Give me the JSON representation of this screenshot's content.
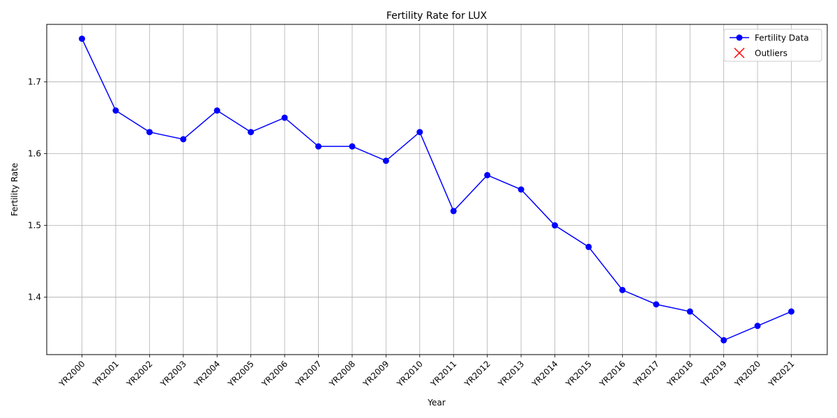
{
  "colors": {
    "series": "#0000ff",
    "outlier": "#ff0000",
    "grid": "#b0b0b0",
    "axis": "#000000",
    "legend_border": "#cccccc"
  },
  "chart_data": {
    "type": "line",
    "title": "Fertility Rate for LUX",
    "xlabel": "Year",
    "ylabel": "Fertility Rate",
    "grid": true,
    "legend_placement": "top-right",
    "ylim": [
      1.32,
      1.78
    ],
    "yticks": [
      "1.4",
      "1.5",
      "1.6",
      "1.7"
    ],
    "categories": [
      "YR2000",
      "YR2001",
      "YR2002",
      "YR2003",
      "YR2004",
      "YR2005",
      "YR2006",
      "YR2007",
      "YR2008",
      "YR2009",
      "YR2010",
      "YR2011",
      "YR2012",
      "YR2013",
      "YR2014",
      "YR2015",
      "YR2016",
      "YR2017",
      "YR2018",
      "YR2019",
      "YR2020",
      "YR2021"
    ],
    "series": [
      {
        "name": "Fertility Data",
        "values": [
          1.76,
          1.66,
          1.63,
          1.62,
          1.66,
          1.63,
          1.65,
          1.61,
          1.61,
          1.59,
          1.63,
          1.52,
          1.57,
          1.55,
          1.5,
          1.47,
          1.41,
          1.39,
          1.38,
          1.34,
          1.36,
          1.38
        ]
      }
    ],
    "outliers": {
      "name": "Outliers",
      "values": []
    }
  }
}
